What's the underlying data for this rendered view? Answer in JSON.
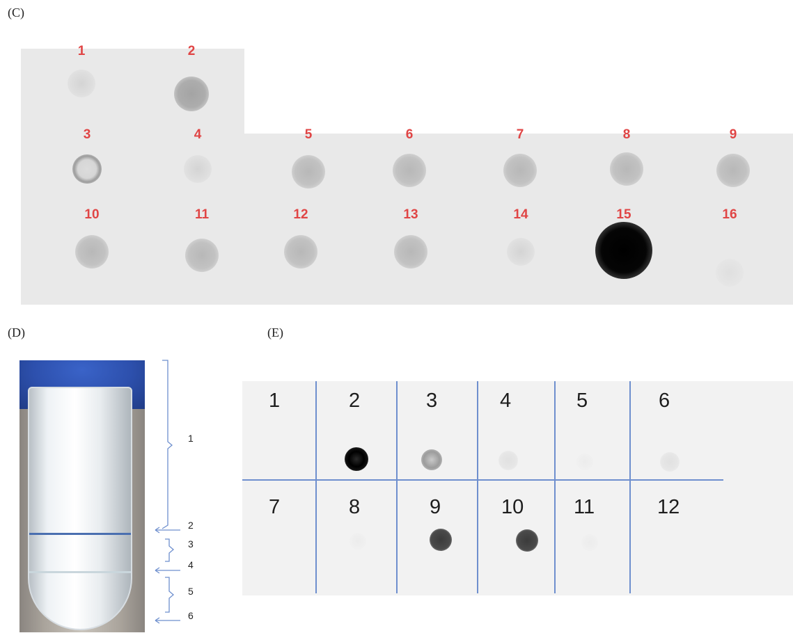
{
  "panels": {
    "c": {
      "label": "(C)"
    },
    "d": {
      "label": "(D)"
    },
    "e": {
      "label": "(E)"
    }
  },
  "panel_c": {
    "spots": [
      {
        "label": "1",
        "intensity": "faint"
      },
      {
        "label": "2",
        "intensity": "medium"
      },
      {
        "label": "3",
        "intensity": "ring"
      },
      {
        "label": "4",
        "intensity": "faint"
      },
      {
        "label": "5",
        "intensity": "light"
      },
      {
        "label": "6",
        "intensity": "light"
      },
      {
        "label": "7",
        "intensity": "light"
      },
      {
        "label": "8",
        "intensity": "light"
      },
      {
        "label": "9",
        "intensity": "light"
      },
      {
        "label": "10",
        "intensity": "light"
      },
      {
        "label": "11",
        "intensity": "light"
      },
      {
        "label": "12",
        "intensity": "light"
      },
      {
        "label": "13",
        "intensity": "light"
      },
      {
        "label": "14",
        "intensity": "faint"
      },
      {
        "label": "15",
        "intensity": "very-strong"
      },
      {
        "label": "16",
        "intensity": "very-faint"
      }
    ]
  },
  "panel_d": {
    "fractions": [
      "1",
      "2",
      "3",
      "4",
      "5",
      "6"
    ]
  },
  "panel_e": {
    "cells": [
      {
        "label": "1",
        "intensity": "none"
      },
      {
        "label": "2",
        "intensity": "very-strong"
      },
      {
        "label": "3",
        "intensity": "medium"
      },
      {
        "label": "4",
        "intensity": "faint"
      },
      {
        "label": "5",
        "intensity": "very-faint"
      },
      {
        "label": "6",
        "intensity": "faint"
      },
      {
        "label": "7",
        "intensity": "none"
      },
      {
        "label": "8",
        "intensity": "very-faint"
      },
      {
        "label": "9",
        "intensity": "strong"
      },
      {
        "label": "10",
        "intensity": "strong"
      },
      {
        "label": "11",
        "intensity": "very-faint"
      },
      {
        "label": "12",
        "intensity": "none"
      }
    ]
  }
}
